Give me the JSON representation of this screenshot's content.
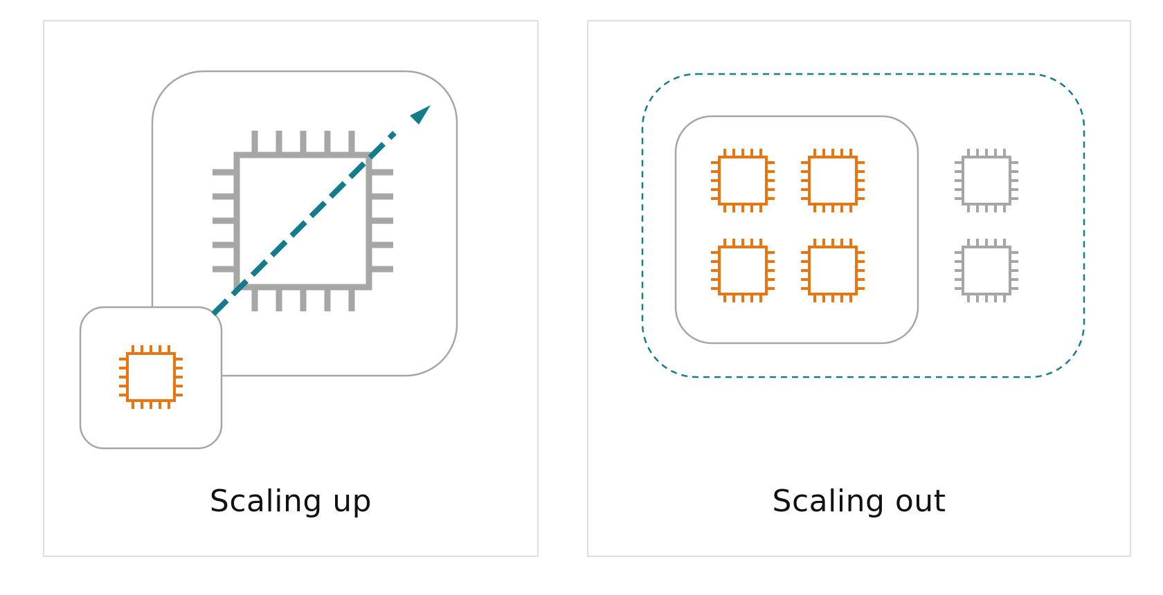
{
  "panels": {
    "scale_up": {
      "caption": "Scaling up"
    },
    "scale_out": {
      "caption": "Scaling out"
    }
  },
  "colors": {
    "active_chip": "#e8750f",
    "inactive_chip": "#a6a6a6",
    "container_border": "#a6a6a6",
    "scaling_arrow": "#137c8b",
    "panel_border": "#dedede"
  },
  "icons": {
    "active_instance": "cpu-chip-icon",
    "inactive_instance": "cpu-chip-icon",
    "direction": "diagonal-arrow-icon"
  }
}
